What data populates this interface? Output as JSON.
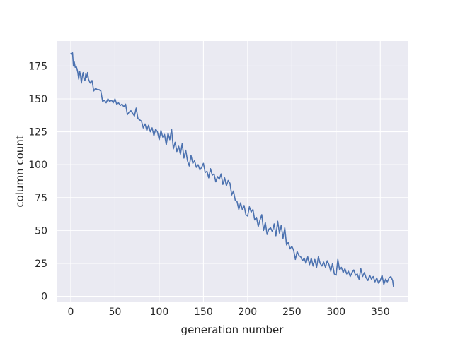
{
  "chart_data": {
    "type": "line",
    "title": "",
    "xlabel": "generation number",
    "ylabel": "column count",
    "xlim": [
      -16,
      381
    ],
    "ylim": [
      -4,
      194
    ],
    "xticks": [
      0,
      50,
      100,
      150,
      200,
      250,
      300,
      350
    ],
    "yticks": [
      0,
      25,
      50,
      75,
      100,
      125,
      150,
      175
    ],
    "grid": true,
    "style": {
      "background": "#eaeaf2",
      "grid_color": "#ffffff",
      "line_color": "#4c72b0"
    },
    "series": [
      {
        "x": [
          0,
          1,
          2,
          3,
          4,
          5,
          6,
          7,
          8,
          9,
          10,
          11,
          12,
          13,
          14,
          15,
          16,
          17,
          18,
          19,
          20,
          22,
          24,
          26,
          28,
          30,
          32,
          34,
          36,
          38,
          40,
          42,
          44,
          46,
          48,
          50,
          52,
          54,
          56,
          58,
          60,
          62,
          64,
          66,
          68,
          70,
          72,
          74,
          76,
          78,
          80,
          82,
          84,
          86,
          88,
          90,
          92,
          94,
          96,
          98,
          100,
          102,
          104,
          106,
          108,
          110,
          112,
          114,
          116,
          118,
          120,
          122,
          124,
          126,
          128,
          130,
          132,
          134,
          136,
          138,
          140,
          142,
          144,
          146,
          148,
          150,
          152,
          154,
          156,
          158,
          160,
          162,
          164,
          166,
          168,
          170,
          172,
          174,
          176,
          178,
          180,
          182,
          184,
          186,
          188,
          190,
          192,
          194,
          196,
          198,
          200,
          202,
          204,
          206,
          208,
          210,
          212,
          214,
          216,
          218,
          220,
          222,
          224,
          226,
          228,
          230,
          232,
          234,
          236,
          238,
          240,
          242,
          244,
          246,
          248,
          250,
          252,
          254,
          256,
          258,
          260,
          262,
          264,
          266,
          268,
          270,
          272,
          274,
          276,
          278,
          280,
          282,
          284,
          286,
          288,
          290,
          292,
          294,
          296,
          298,
          300,
          302,
          304,
          306,
          308,
          310,
          312,
          314,
          316,
          318,
          320,
          322,
          324,
          326,
          328,
          330,
          332,
          334,
          336,
          338,
          340,
          342,
          344,
          346,
          348,
          350,
          352,
          354,
          356,
          358,
          360,
          362,
          364,
          365
        ],
        "y": [
          185,
          184,
          185,
          175,
          178,
          174,
          175,
          173,
          170,
          165,
          171,
          168,
          162,
          167,
          170,
          165,
          164,
          169,
          166,
          170,
          165,
          162,
          164,
          156,
          158,
          157,
          157,
          156,
          148,
          149,
          147,
          150,
          148,
          149,
          147,
          150,
          146,
          147,
          145,
          146,
          144,
          146,
          138,
          140,
          141,
          139,
          137,
          143,
          135,
          134,
          133,
          128,
          131,
          126,
          130,
          125,
          128,
          122,
          127,
          125,
          119,
          126,
          121,
          123,
          115,
          124,
          119,
          127,
          112,
          117,
          110,
          114,
          108,
          116,
          105,
          111,
          103,
          99,
          107,
          101,
          103,
          98,
          100,
          96,
          98,
          101,
          94,
          95,
          90,
          97,
          92,
          93,
          87,
          91,
          89,
          93,
          85,
          90,
          84,
          88,
          86,
          77,
          80,
          73,
          72,
          66,
          71,
          66,
          69,
          62,
          61,
          68,
          64,
          66,
          58,
          60,
          53,
          58,
          62,
          50,
          56,
          47,
          51,
          52,
          49,
          55,
          46,
          57,
          48,
          54,
          44,
          52,
          39,
          41,
          36,
          38,
          35,
          28,
          34,
          31,
          30,
          27,
          29,
          25,
          30,
          24,
          29,
          23,
          28,
          22,
          30,
          25,
          23,
          26,
          22,
          27,
          24,
          19,
          25,
          17,
          16,
          28,
          20,
          22,
          18,
          21,
          17,
          19,
          15,
          18,
          20,
          16,
          17,
          13,
          21,
          15,
          18,
          14,
          12,
          16,
          13,
          15,
          11,
          14,
          10,
          12,
          16,
          9,
          13,
          11,
          14,
          15,
          12,
          7
        ]
      }
    ]
  }
}
